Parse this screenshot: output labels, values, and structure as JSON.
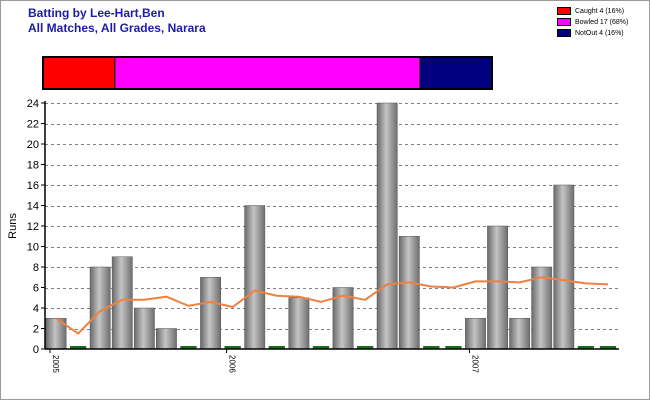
{
  "header": {
    "title_line1": "Batting by Lee-Hart,Ben",
    "title_line2": "All Matches, All Grades, Narara"
  },
  "legend": [
    {
      "label": "Caught 4 (16%)",
      "color": "#ff0000"
    },
    {
      "label": "Bowled 17 (68%)",
      "color": "#ff00ff"
    },
    {
      "label": "NotOut 4 (16%)",
      "color": "#000080"
    }
  ],
  "chart_data": {
    "type": "bar",
    "ylabel": "Runs",
    "ylim": [
      0,
      24
    ],
    "yticks": [
      0,
      2,
      4,
      6,
      8,
      10,
      12,
      14,
      16,
      18,
      20,
      22,
      24
    ],
    "grid": true,
    "x_tick_labels": [
      {
        "label": "2005",
        "index": 0
      },
      {
        "label": "2006",
        "index": 8
      },
      {
        "label": "2007",
        "index": 19
      }
    ],
    "dismissal_split": [
      {
        "name": "Caught",
        "count": 4,
        "color": "#ff0000"
      },
      {
        "name": "Bowled",
        "count": 17,
        "color": "#ff00ff"
      },
      {
        "name": "NotOut",
        "count": 4,
        "color": "#000080"
      }
    ],
    "series": [
      {
        "name": "Runs",
        "values": [
          3,
          0,
          8,
          9,
          4,
          2,
          0,
          7,
          0,
          14,
          0,
          5,
          0,
          6,
          0,
          24,
          11,
          0,
          0,
          3,
          12,
          3,
          8,
          16,
          0,
          0
        ]
      },
      {
        "name": "Average",
        "values": [
          3,
          1.5,
          3.7,
          4.8,
          4.8,
          5.1,
          4.2,
          4.6,
          4.1,
          5.7,
          5.2,
          5.1,
          4.6,
          5.2,
          4.8,
          6.3,
          6.5,
          6.1,
          6.0,
          6.6,
          6.6,
          6.5,
          7.0,
          6.7,
          6.4,
          6.3
        ]
      }
    ],
    "colors": {
      "bar": "#a8a8a8",
      "average_line": "#f08040",
      "zero_marker": "#1a6e1a",
      "grid": "#808080"
    }
  }
}
